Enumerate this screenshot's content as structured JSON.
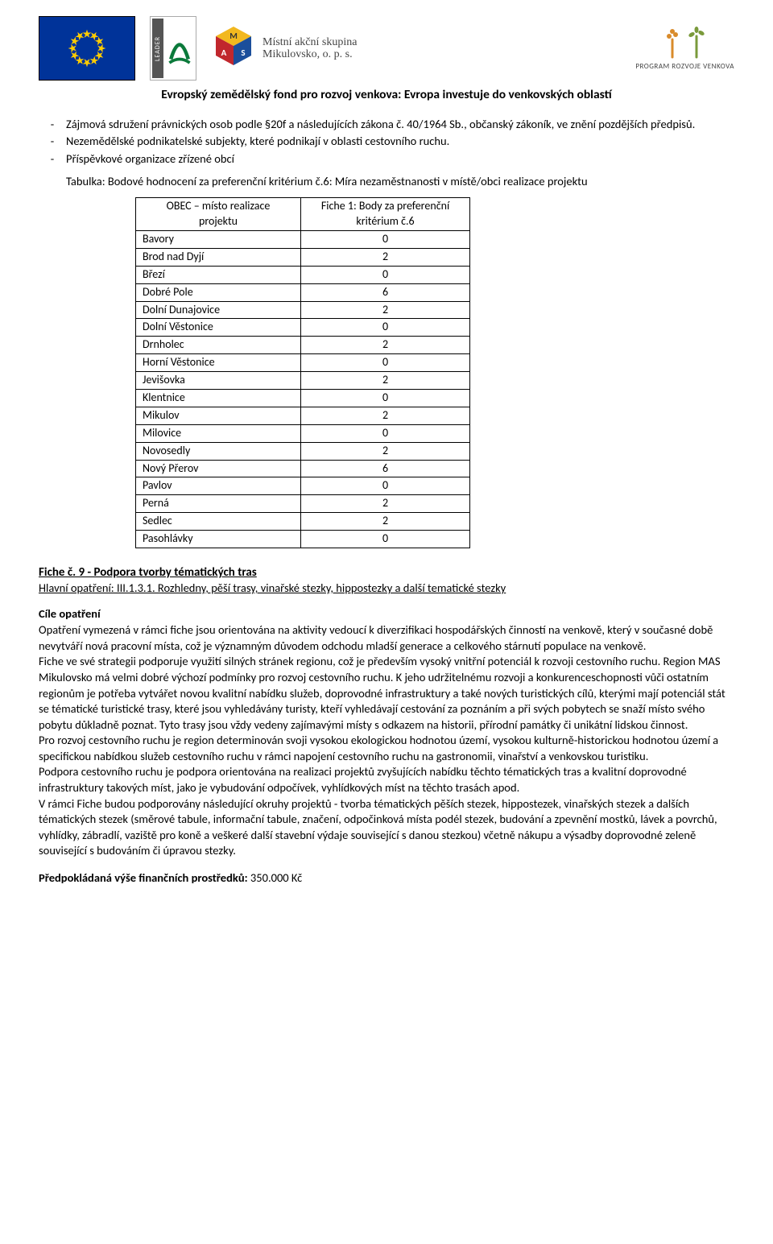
{
  "header": {
    "leader_label": "LEADER",
    "mas_line1": "Místní akční skupina",
    "mas_line2": "Mikulovsko, o. p. s.",
    "prv_label": "PROGRAM ROZVOJE VENKOVA",
    "banner": "Evropský zemědělský fond pro rozvoj venkova: Evropa investuje do venkovských oblastí"
  },
  "colors": {
    "eu_blue": "#003399",
    "eu_gold": "#ffcc00",
    "leader_gray": "#585858",
    "leader_green": "#0b7a3b",
    "cube_red": "#c1272d",
    "cube_blue": "#1b4e9b",
    "cube_yellow": "#f2b81f",
    "prv_orange": "#d98b2b",
    "prv_green": "#7a9a3b",
    "text": "#000000"
  },
  "bullets": [
    "Zájmová sdružení právnických osob podle §20f a následujících zákona č. 40/1964 Sb., občanský  zákoník, ve znění pozdějších předpisů.",
    "Nezemědělské podnikatelské subjekty, které podnikají v oblasti cestovního ruchu.",
    "Příspěvkové organizace zřízené obcí"
  ],
  "table_intro": "Tabulka: Bodové hodnocení za preferenční kritérium č.6: Míra nezaměstnanosti v místě/obci realizace projektu",
  "table": {
    "head_col1_l1": "OBEC – místo realizace",
    "head_col1_l2": "projektu",
    "head_col2_l1": "Fiche 1: Body za preferenční",
    "head_col2_l2": "kritérium č.6",
    "rows": [
      {
        "name": "Bavory",
        "val": "0"
      },
      {
        "name": "Brod nad Dyjí",
        "val": "2"
      },
      {
        "name": "Březí",
        "val": "0"
      },
      {
        "name": "Dobré Pole",
        "val": "6"
      },
      {
        "name": "Dolní Dunajovice",
        "val": "2"
      },
      {
        "name": "Dolní Věstonice",
        "val": "0"
      },
      {
        "name": "Drnholec",
        "val": "2"
      },
      {
        "name": "Horní Věstonice",
        "val": "0"
      },
      {
        "name": "Jevišovka",
        "val": "2"
      },
      {
        "name": "Klentnice",
        "val": "0"
      },
      {
        "name": "Mikulov",
        "val": "2"
      },
      {
        "name": "Milovice",
        "val": "0"
      },
      {
        "name": "Novosedly",
        "val": "2"
      },
      {
        "name": "Nový Přerov",
        "val": "6"
      },
      {
        "name": "Pavlov",
        "val": "0"
      },
      {
        "name": "Perná",
        "val": "2"
      },
      {
        "name": "Sedlec",
        "val": "2"
      },
      {
        "name": "Pasohlávky",
        "val": "0"
      }
    ]
  },
  "fiche": {
    "title": "Fiche č. 9 - Podpora tvorby tématických tras",
    "sub": "Hlavní opatření: III.1.3.1. Rozhledny, pěší trasy, vinařské stezky, hippostezky a další tematické stezky",
    "cile_h": "Cíle opatření",
    "p1": "Opatření vymezená v rámci fiche jsou orientována na aktivity vedoucí k diverzifikaci hospodářských činností na venkově, který v současné době nevytváří nová pracovní místa, což je významným důvodem odchodu mladší generace a celkového stárnutí populace na venkově.",
    "p2": "Fiche ve své strategii podporuje využití silných stránek regionu, což je především vysoký vnitřní potenciál k rozvoji cestovního ruchu. Region MAS Mikulovsko má velmi dobré výchozí podmínky pro rozvoj cestovního ruchu. K jeho udržitelnému rozvoji a konkurenceschopnosti vůči ostatním regionům je potřeba vytvářet novou kvalitní nabídku služeb, doprovodné infrastruktury a také nových turistických cílů, kterými mají potenciál stát se tématické turistické trasy, které jsou vyhledávány turisty, kteří vyhledávají cestování za poznáním a při svých pobytech se snaží místo svého pobytu důkladně poznat. Tyto trasy jsou vždy vedeny zajímavými místy s odkazem na historii, přírodní památky či unikátní lidskou činnost.",
    "p3": "Pro rozvoj cestovního ruchu je region determinován svoji vysokou ekologickou hodnotou území, vysokou kulturně-historickou hodnotou území a specifickou nabídkou služeb cestovního ruchu v rámci napojení cestovního ruchu na gastronomii, vinařství a venkovskou turistiku.",
    "p4": "Podpora cestovního ruchu je podpora orientována na realizaci projektů zvyšujících nabídku těchto tématických tras a kvalitní doprovodné infrastruktury takových míst, jako je vybudování odpočívek, vyhlídkových míst na těchto trasách apod.",
    "p5": "V rámci Fiche budou podporovány následující okruhy projektů - tvorba tématických pěších stezek, hippostezek, vinařských stezek a dalších tématických stezek (směrové tabule, informační tabule, značení, odpočinková místa podél stezek, budování a zpevnění mostků, lávek a povrchů, vyhlídky, zábradlí, vaziště pro koně a veškeré další stavební výdaje související s danou stezkou) včetně nákupu a výsadby doprovodné zeleně související s budováním či úpravou stezky.",
    "final_label": "Předpokládaná výše finančních prostředků:",
    "final_val": " 350.000 Kč"
  }
}
